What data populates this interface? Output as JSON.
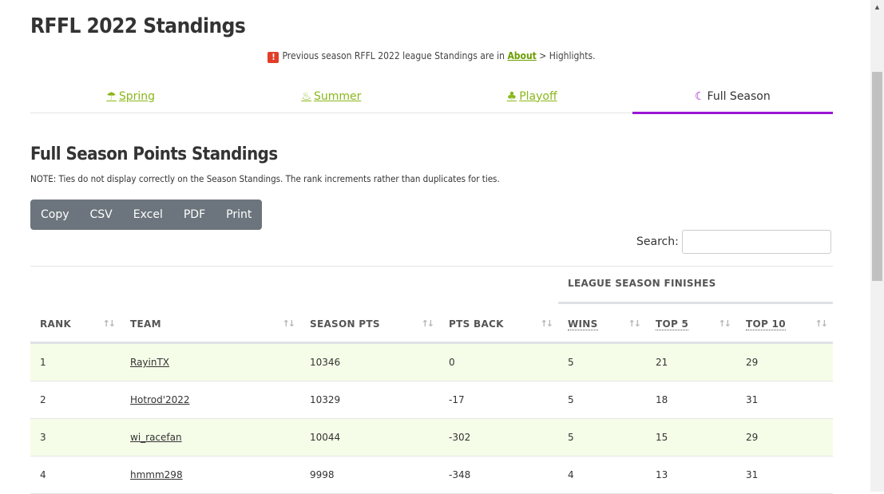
{
  "page_title": "RFFL 2022 Standings",
  "notice": {
    "icon": "exclamation-icon",
    "text_before": "Previous season RFFL 2022 league Standings are in ",
    "link": "About",
    "text_after": " > Highlights."
  },
  "tabs": [
    {
      "label": "Spring",
      "icon": "umbrella-icon",
      "glyph": "☂"
    },
    {
      "label": "Summer",
      "icon": "fire-icon",
      "glyph": "♨"
    },
    {
      "label": "Playoff",
      "icon": "tree-icon",
      "glyph": "♣"
    },
    {
      "label": "Full Season",
      "icon": "moon-icon",
      "glyph": "☾",
      "active": true
    }
  ],
  "section_title": "Full Season Points Standings",
  "note": "NOTE: Ties do not display correctly on the Season Standings. The rank increments rather than duplicates for ties.",
  "export_buttons": [
    "Copy",
    "CSV",
    "Excel",
    "PDF",
    "Print"
  ],
  "search": {
    "label": "Search:",
    "value": ""
  },
  "table": {
    "group_header": "LEAGUE SEASON FINISHES",
    "columns": [
      "RANK",
      "TEAM",
      "SEASON PTS",
      "PTS BACK",
      "WINS",
      "TOP 5",
      "TOP 10"
    ],
    "sort_glyph": "↑↓",
    "rows": [
      {
        "rank": "1",
        "team": "RayinTX",
        "season_pts": "10346",
        "pts_back": "0",
        "wins": "5",
        "top5": "21",
        "top10": "29"
      },
      {
        "rank": "2",
        "team": "Hotrod'2022",
        "season_pts": "10329",
        "pts_back": "-17",
        "wins": "5",
        "top5": "18",
        "top10": "31"
      },
      {
        "rank": "3",
        "team": "wi_racefan",
        "season_pts": "10044",
        "pts_back": "-302",
        "wins": "5",
        "top5": "15",
        "top10": "29"
      },
      {
        "rank": "4",
        "team": "hmmm298",
        "season_pts": "9998",
        "pts_back": "-348",
        "wins": "4",
        "top5": "13",
        "top10": "31"
      }
    ]
  },
  "colors": {
    "accent_green": "#8bb71b",
    "active_tab": "#9a16d4",
    "button_bg": "#6c757d",
    "row_stripe": "#f5fde8"
  }
}
